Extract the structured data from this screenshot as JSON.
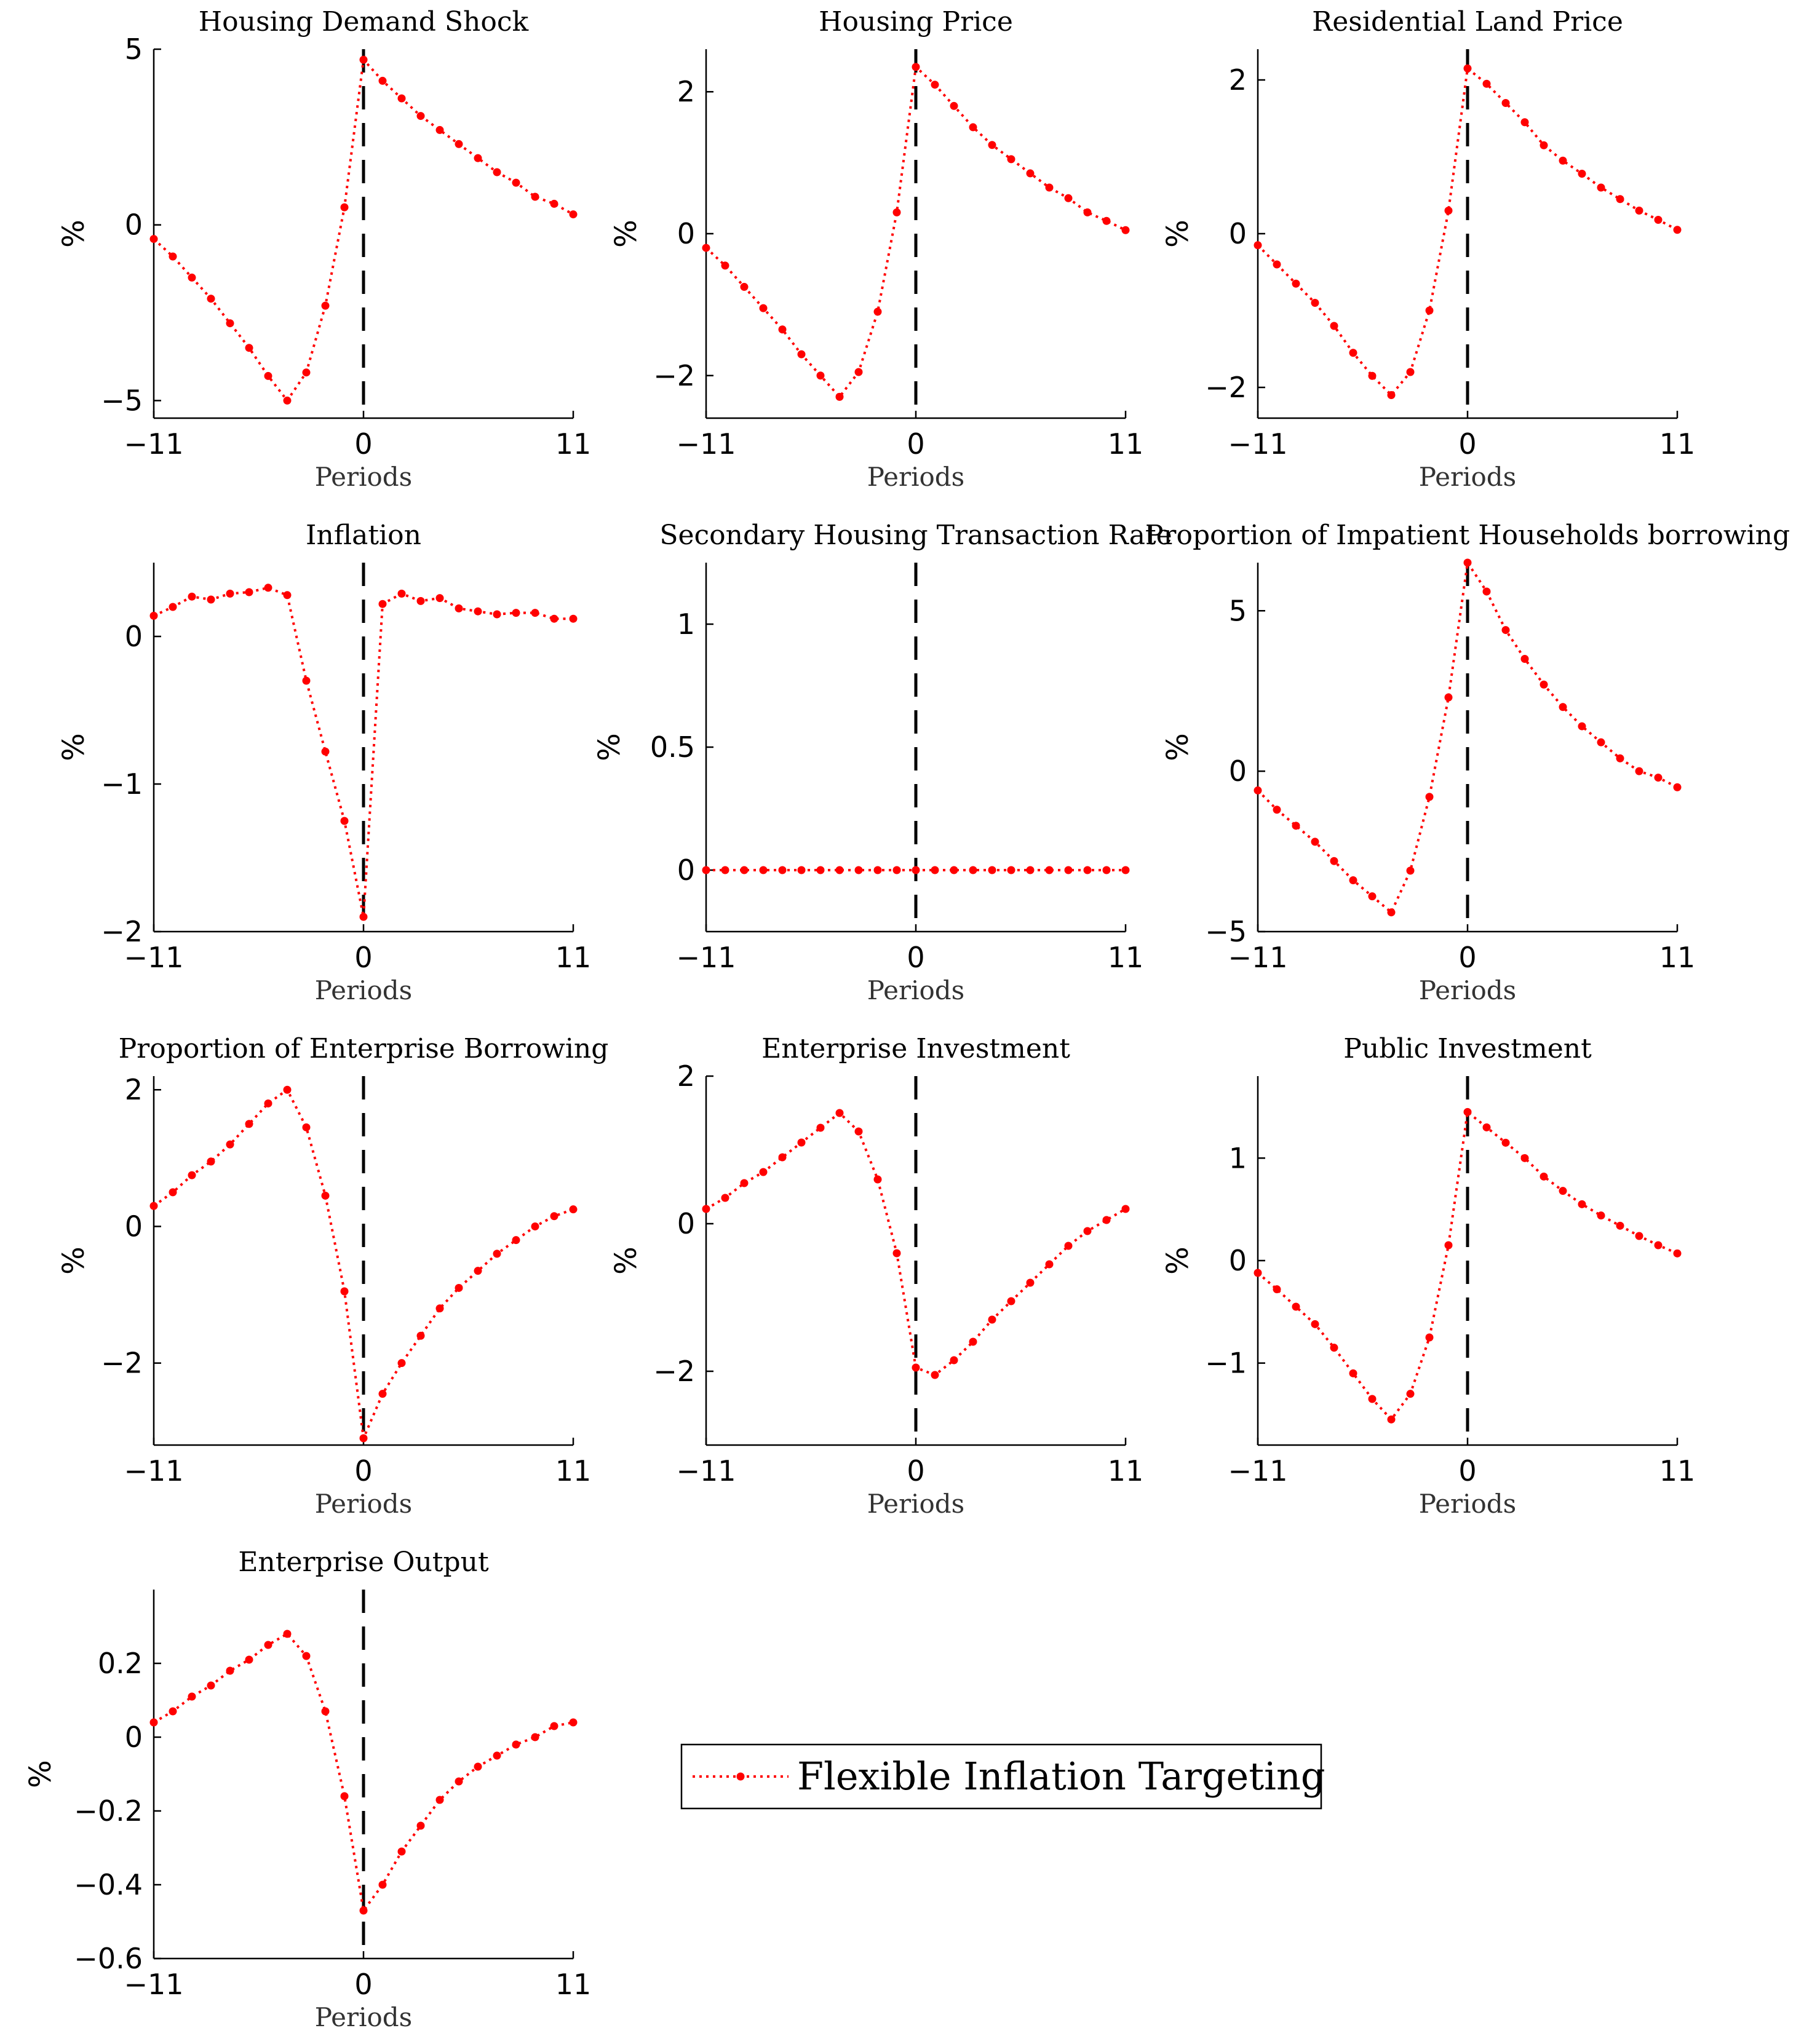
{
  "legend": {
    "label": "Flexible Inflation Targeting",
    "color": "#ff0000",
    "placement": "center"
  },
  "chart_data": [
    {
      "type": "line",
      "title": "Housing Demand Shock",
      "xlabel": "Periods",
      "ylabel": "%",
      "xlim": [
        -11,
        11
      ],
      "ylim": [
        -5.5,
        5
      ],
      "xticks": [
        {
          "value": -11,
          "label": "−11"
        },
        {
          "value": 0,
          "label": "0"
        },
        {
          "value": 11,
          "label": "11"
        }
      ],
      "yticks": [
        {
          "value": -5,
          "label": "−5"
        },
        {
          "value": 0,
          "label": "0"
        },
        {
          "value": 5,
          "label": "5"
        }
      ],
      "vline_x": 0,
      "series": [
        {
          "x": [
            -11,
            -10,
            -9,
            -8,
            -7,
            -6,
            -5,
            -4,
            -3,
            -2,
            -1,
            0,
            1,
            2,
            3,
            4,
            5,
            6,
            7,
            8,
            9,
            10,
            11
          ],
          "y": [
            -0.4,
            -0.9,
            -1.5,
            -2.1,
            -2.8,
            -3.5,
            -4.3,
            -5.0,
            -4.2,
            -2.3,
            0.5,
            4.7,
            4.1,
            3.6,
            3.1,
            2.7,
            2.3,
            1.9,
            1.5,
            1.2,
            0.8,
            0.6,
            0.3
          ]
        }
      ]
    },
    {
      "type": "line",
      "title": "Housing Price",
      "xlabel": "Periods",
      "ylabel": "%",
      "xlim": [
        -11,
        11
      ],
      "ylim": [
        -2.6,
        2.6
      ],
      "xticks": [
        {
          "value": -11,
          "label": "−11"
        },
        {
          "value": 0,
          "label": "0"
        },
        {
          "value": 11,
          "label": "11"
        }
      ],
      "yticks": [
        {
          "value": -2,
          "label": "−2"
        },
        {
          "value": 0,
          "label": "0"
        },
        {
          "value": 2,
          "label": "2"
        }
      ],
      "vline_x": 0,
      "series": [
        {
          "x": [
            -11,
            -10,
            -9,
            -8,
            -7,
            -6,
            -5,
            -4,
            -3,
            -2,
            -1,
            0,
            1,
            2,
            3,
            4,
            5,
            6,
            7,
            8,
            9,
            10,
            11
          ],
          "y": [
            -0.2,
            -0.45,
            -0.75,
            -1.05,
            -1.35,
            -1.7,
            -2.0,
            -2.3,
            -1.95,
            -1.1,
            0.3,
            2.35,
            2.1,
            1.8,
            1.5,
            1.25,
            1.05,
            0.85,
            0.65,
            0.5,
            0.3,
            0.18,
            0.05
          ]
        }
      ]
    },
    {
      "type": "line",
      "title": "Residential Land Price",
      "xlabel": "Periods",
      "ylabel": "%",
      "xlim": [
        -11,
        11
      ],
      "ylim": [
        -2.4,
        2.4
      ],
      "xticks": [
        {
          "value": -11,
          "label": "−11"
        },
        {
          "value": 0,
          "label": "0"
        },
        {
          "value": 11,
          "label": "11"
        }
      ],
      "yticks": [
        {
          "value": -2,
          "label": "−2"
        },
        {
          "value": 0,
          "label": "0"
        },
        {
          "value": 2,
          "label": "2"
        }
      ],
      "vline_x": 0,
      "series": [
        {
          "x": [
            -11,
            -10,
            -9,
            -8,
            -7,
            -6,
            -5,
            -4,
            -3,
            -2,
            -1,
            0,
            1,
            2,
            3,
            4,
            5,
            6,
            7,
            8,
            9,
            10,
            11
          ],
          "y": [
            -0.15,
            -0.4,
            -0.65,
            -0.9,
            -1.2,
            -1.55,
            -1.85,
            -2.1,
            -1.8,
            -1.0,
            0.3,
            2.15,
            1.95,
            1.7,
            1.45,
            1.15,
            0.95,
            0.78,
            0.6,
            0.45,
            0.3,
            0.18,
            0.05
          ]
        }
      ]
    },
    {
      "type": "line",
      "title": "Inflation",
      "xlabel": "Periods",
      "ylabel": "%",
      "xlim": [
        -11,
        11
      ],
      "ylim": [
        -2,
        0.5
      ],
      "xticks": [
        {
          "value": -11,
          "label": "−11"
        },
        {
          "value": 0,
          "label": "0"
        },
        {
          "value": 11,
          "label": "11"
        }
      ],
      "yticks": [
        {
          "value": -2,
          "label": "−2"
        },
        {
          "value": -1,
          "label": "−1"
        },
        {
          "value": 0,
          "label": "0"
        }
      ],
      "vline_x": 0,
      "series": [
        {
          "x": [
            -11,
            -10,
            -9,
            -8,
            -7,
            -6,
            -5,
            -4,
            -3,
            -2,
            -1,
            0,
            1,
            2,
            3,
            4,
            5,
            6,
            7,
            8,
            9,
            10,
            11
          ],
          "y": [
            0.14,
            0.2,
            0.27,
            0.25,
            0.29,
            0.3,
            0.33,
            0.28,
            -0.3,
            -0.78,
            -1.25,
            -1.9,
            0.22,
            0.29,
            0.24,
            0.26,
            0.19,
            0.17,
            0.15,
            0.16,
            0.16,
            0.12,
            0.12
          ]
        }
      ]
    },
    {
      "type": "line",
      "title": "Secondary Housing Transaction Rate",
      "xlabel": "Periods",
      "ylabel": "%",
      "xlim": [
        -11,
        11
      ],
      "ylim": [
        -0.25,
        1.25
      ],
      "xticks": [
        {
          "value": -11,
          "label": "−11"
        },
        {
          "value": 0,
          "label": "0"
        },
        {
          "value": 11,
          "label": "11"
        }
      ],
      "yticks": [
        {
          "value": 0,
          "label": "0"
        },
        {
          "value": 0.5,
          "label": "0.5"
        },
        {
          "value": 1,
          "label": "1"
        }
      ],
      "vline_x": 0,
      "series": [
        {
          "x": [
            -11,
            -10,
            -9,
            -8,
            -7,
            -6,
            -5,
            -4,
            -3,
            -2,
            -1,
            0,
            1,
            2,
            3,
            4,
            5,
            6,
            7,
            8,
            9,
            10,
            11
          ],
          "y": [
            0,
            0,
            0,
            0,
            0,
            0,
            0,
            0,
            0,
            0,
            0,
            0,
            0,
            0,
            0,
            0,
            0,
            0,
            0,
            0,
            0,
            0,
            0
          ]
        }
      ]
    },
    {
      "type": "line",
      "title": "Proportion of Impatient Households borrowing",
      "xlabel": "Periods",
      "ylabel": "%",
      "xlim": [
        -11,
        11
      ],
      "ylim": [
        -5,
        6.5
      ],
      "xticks": [
        {
          "value": -11,
          "label": "−11"
        },
        {
          "value": 0,
          "label": "0"
        },
        {
          "value": 11,
          "label": "11"
        }
      ],
      "yticks": [
        {
          "value": -5,
          "label": "−5"
        },
        {
          "value": 0,
          "label": "0"
        },
        {
          "value": 5,
          "label": "5"
        }
      ],
      "vline_x": 0,
      "series": [
        {
          "x": [
            -11,
            -10,
            -9,
            -8,
            -7,
            -6,
            -5,
            -4,
            -3,
            -2,
            -1,
            0,
            1,
            2,
            3,
            4,
            5,
            6,
            7,
            8,
            9,
            10,
            11
          ],
          "y": [
            -0.6,
            -1.2,
            -1.7,
            -2.2,
            -2.8,
            -3.4,
            -3.9,
            -4.4,
            -3.1,
            -0.8,
            2.3,
            6.5,
            5.6,
            4.4,
            3.5,
            2.7,
            2.0,
            1.4,
            0.9,
            0.4,
            0.0,
            -0.2,
            -0.5
          ]
        }
      ]
    },
    {
      "type": "line",
      "title": "Proportion of Enterprise Borrowing",
      "xlabel": "Periods",
      "ylabel": "%",
      "xlim": [
        -11,
        11
      ],
      "ylim": [
        -3.2,
        2.2
      ],
      "xticks": [
        {
          "value": -11,
          "label": "−11"
        },
        {
          "value": 0,
          "label": "0"
        },
        {
          "value": 11,
          "label": "11"
        }
      ],
      "yticks": [
        {
          "value": -2,
          "label": "−2"
        },
        {
          "value": 0,
          "label": "0"
        },
        {
          "value": 2,
          "label": "2"
        }
      ],
      "vline_x": 0,
      "series": [
        {
          "x": [
            -11,
            -10,
            -9,
            -8,
            -7,
            -6,
            -5,
            -4,
            -3,
            -2,
            -1,
            0,
            1,
            2,
            3,
            4,
            5,
            6,
            7,
            8,
            9,
            10,
            11
          ],
          "y": [
            0.3,
            0.5,
            0.75,
            0.95,
            1.2,
            1.5,
            1.8,
            2.0,
            1.45,
            0.45,
            -0.95,
            -3.1,
            -2.45,
            -2.0,
            -1.6,
            -1.2,
            -0.9,
            -0.65,
            -0.4,
            -0.2,
            0.0,
            0.15,
            0.25
          ]
        }
      ]
    },
    {
      "type": "line",
      "title": "Enterprise Investment",
      "xlabel": "Periods",
      "ylabel": "%",
      "xlim": [
        -11,
        11
      ],
      "ylim": [
        -3,
        2
      ],
      "xticks": [
        {
          "value": -11,
          "label": "−11"
        },
        {
          "value": 0,
          "label": "0"
        },
        {
          "value": 11,
          "label": "11"
        }
      ],
      "yticks": [
        {
          "value": -2,
          "label": "−2"
        },
        {
          "value": 0,
          "label": "0"
        },
        {
          "value": 2,
          "label": "2"
        }
      ],
      "vline_x": 0,
      "series": [
        {
          "x": [
            -11,
            -10,
            -9,
            -8,
            -7,
            -6,
            -5,
            -4,
            -3,
            -2,
            -1,
            0,
            1,
            2,
            3,
            4,
            5,
            6,
            7,
            8,
            9,
            10,
            11
          ],
          "y": [
            0.2,
            0.35,
            0.55,
            0.7,
            0.9,
            1.1,
            1.3,
            1.5,
            1.25,
            0.6,
            -0.4,
            -1.95,
            -2.05,
            -1.85,
            -1.6,
            -1.3,
            -1.05,
            -0.8,
            -0.55,
            -0.3,
            -0.1,
            0.05,
            0.2
          ]
        }
      ]
    },
    {
      "type": "line",
      "title": "Public Investment",
      "xlabel": "Periods",
      "ylabel": "%",
      "xlim": [
        -11,
        11
      ],
      "ylim": [
        -1.8,
        1.8
      ],
      "xticks": [
        {
          "value": -11,
          "label": "−11"
        },
        {
          "value": 0,
          "label": "0"
        },
        {
          "value": 11,
          "label": "11"
        }
      ],
      "yticks": [
        {
          "value": -1,
          "label": "−1"
        },
        {
          "value": 0,
          "label": "0"
        },
        {
          "value": 1,
          "label": "1"
        }
      ],
      "vline_x": 0,
      "series": [
        {
          "x": [
            -11,
            -10,
            -9,
            -8,
            -7,
            -6,
            -5,
            -4,
            -3,
            -2,
            -1,
            0,
            1,
            2,
            3,
            4,
            5,
            6,
            7,
            8,
            9,
            10,
            11
          ],
          "y": [
            -0.12,
            -0.28,
            -0.45,
            -0.62,
            -0.85,
            -1.1,
            -1.35,
            -1.55,
            -1.3,
            -0.75,
            0.15,
            1.45,
            1.3,
            1.15,
            1.0,
            0.82,
            0.68,
            0.55,
            0.44,
            0.34,
            0.24,
            0.15,
            0.07
          ]
        }
      ]
    },
    {
      "type": "line",
      "title": "Enterprise Output",
      "xlabel": "Periods",
      "ylabel": "%",
      "xlim": [
        -11,
        11
      ],
      "ylim": [
        -0.6,
        0.4
      ],
      "xticks": [
        {
          "value": -11,
          "label": "−11"
        },
        {
          "value": 0,
          "label": "0"
        },
        {
          "value": 11,
          "label": "11"
        }
      ],
      "yticks": [
        {
          "value": -0.6,
          "label": "−0.6"
        },
        {
          "value": -0.4,
          "label": "−0.4"
        },
        {
          "value": -0.2,
          "label": "−0.2"
        },
        {
          "value": 0,
          "label": "0"
        },
        {
          "value": 0.2,
          "label": "0.2"
        }
      ],
      "vline_x": 0,
      "series": [
        {
          "x": [
            -11,
            -10,
            -9,
            -8,
            -7,
            -6,
            -5,
            -4,
            -3,
            -2,
            -1,
            0,
            1,
            2,
            3,
            4,
            5,
            6,
            7,
            8,
            9,
            10,
            11
          ],
          "y": [
            0.04,
            0.07,
            0.11,
            0.14,
            0.18,
            0.21,
            0.25,
            0.28,
            0.22,
            0.07,
            -0.16,
            -0.47,
            -0.4,
            -0.31,
            -0.24,
            -0.17,
            -0.12,
            -0.08,
            -0.05,
            -0.02,
            0.0,
            0.03,
            0.04
          ]
        }
      ]
    }
  ]
}
